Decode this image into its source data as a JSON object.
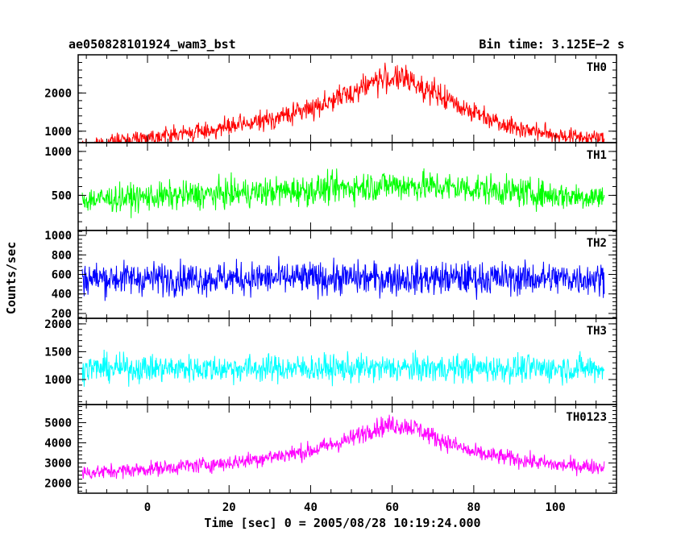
{
  "header": {
    "left_title": "ae050828101924_wam3_bst",
    "right_title": "Bin time: 3.125E−2 s"
  },
  "axes": {
    "xlabel": "Time [sec] 0 = 2005/08/28 10:19:24.000",
    "ylabel": "Counts/sec",
    "xticks": [
      0,
      20,
      40,
      60,
      80,
      100
    ],
    "xlim": [
      -17,
      115
    ]
  },
  "chart_data": [
    {
      "type": "line",
      "name": "TH0",
      "color": "#ff0000",
      "ylim": [
        700,
        3000
      ],
      "yticks": [
        1000,
        2000
      ],
      "x": [
        -16,
        -10,
        0,
        10,
        20,
        30,
        40,
        50,
        55,
        60,
        65,
        70,
        80,
        90,
        100,
        112
      ],
      "y": [
        600,
        700,
        850,
        950,
        1100,
        1300,
        1600,
        2000,
        2300,
        2400,
        2300,
        2000,
        1500,
        1100,
        900,
        800
      ]
    },
    {
      "type": "line",
      "name": "TH1",
      "color": "#00ff00",
      "ylim": [
        100,
        1100
      ],
      "yticks": [
        500,
        1000
      ],
      "x": [
        -16,
        0,
        20,
        40,
        60,
        80,
        100,
        112
      ],
      "y": [
        450,
        480,
        520,
        560,
        620,
        580,
        500,
        480
      ]
    },
    {
      "type": "line",
      "name": "TH2",
      "color": "#0000ff",
      "ylim": [
        150,
        1050
      ],
      "yticks": [
        200,
        400,
        600,
        800,
        1000
      ],
      "x": [
        -16,
        0,
        20,
        40,
        60,
        80,
        100,
        112
      ],
      "y": [
        560,
        560,
        560,
        560,
        560,
        560,
        560,
        560
      ]
    },
    {
      "type": "line",
      "name": "TH3",
      "color": "#00ffff",
      "ylim": [
        550,
        2100
      ],
      "yticks": [
        1000,
        1500,
        2000
      ],
      "x": [
        -16,
        0,
        20,
        40,
        60,
        80,
        100,
        112
      ],
      "y": [
        1200,
        1200,
        1200,
        1200,
        1200,
        1200,
        1200,
        1200
      ]
    },
    {
      "type": "line",
      "name": "TH0123",
      "color": "#ff00ff",
      "ylim": [
        1500,
        5900
      ],
      "yticks": [
        2000,
        3000,
        4000,
        5000
      ],
      "x": [
        -16,
        0,
        20,
        40,
        50,
        55,
        60,
        65,
        70,
        80,
        100,
        112
      ],
      "y": [
        2500,
        2700,
        3000,
        3600,
        4200,
        4700,
        4900,
        4800,
        4300,
        3500,
        2900,
        2800
      ]
    }
  ]
}
